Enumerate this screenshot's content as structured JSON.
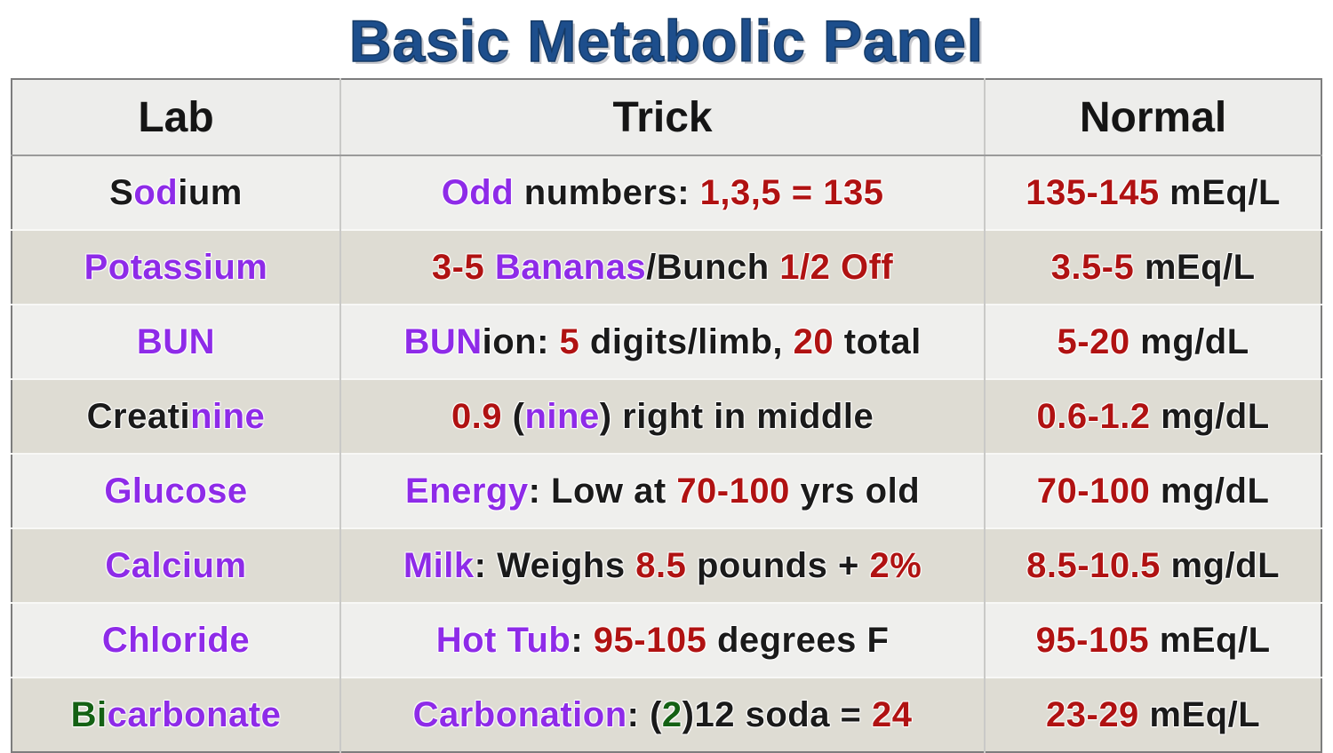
{
  "title": "Basic Metabolic Panel",
  "colors": {
    "black": "#1a1a1a",
    "purple": "#8e2be8",
    "red": "#b01212",
    "green": "#146114",
    "title_blue": "#1d4e8c"
  },
  "table": {
    "headers": [
      "Lab",
      "Trick",
      "Normal"
    ],
    "rows": [
      {
        "lab": [
          {
            "t": "S",
            "c": "black"
          },
          {
            "t": "od",
            "c": "purple"
          },
          {
            "t": "ium",
            "c": "black"
          }
        ],
        "trick": [
          {
            "t": "Odd",
            "c": "purple"
          },
          {
            "t": " numbers: ",
            "c": "black"
          },
          {
            "t": "1,3,5 = 135",
            "c": "red"
          }
        ],
        "normal": [
          {
            "t": "135-145",
            "c": "red"
          },
          {
            "t": " mEq/L",
            "c": "black"
          }
        ]
      },
      {
        "lab": [
          {
            "t": "Potassium",
            "c": "purple"
          }
        ],
        "trick": [
          {
            "t": "3-5 ",
            "c": "red"
          },
          {
            "t": "Bananas",
            "c": "purple"
          },
          {
            "t": "/Bunch ",
            "c": "black"
          },
          {
            "t": "1/2 Off",
            "c": "red"
          }
        ],
        "normal": [
          {
            "t": "3.5-5",
            "c": "red"
          },
          {
            "t": " mEq/L",
            "c": "black"
          }
        ]
      },
      {
        "lab": [
          {
            "t": "BUN",
            "c": "purple"
          }
        ],
        "trick": [
          {
            "t": "BUN",
            "c": "purple"
          },
          {
            "t": "ion: ",
            "c": "black"
          },
          {
            "t": "5",
            "c": "red"
          },
          {
            "t": " digits/limb, ",
            "c": "black"
          },
          {
            "t": "20",
            "c": "red"
          },
          {
            "t": " total",
            "c": "black"
          }
        ],
        "normal": [
          {
            "t": "5-20",
            "c": "red"
          },
          {
            "t": " mg/dL",
            "c": "black"
          }
        ]
      },
      {
        "lab": [
          {
            "t": "Creati",
            "c": "black"
          },
          {
            "t": "nine",
            "c": "purple"
          }
        ],
        "trick": [
          {
            "t": "0.9",
            "c": "red"
          },
          {
            "t": " (",
            "c": "black"
          },
          {
            "t": "nine",
            "c": "purple"
          },
          {
            "t": ") right in middle",
            "c": "black"
          }
        ],
        "normal": [
          {
            "t": "0.6-1.2",
            "c": "red"
          },
          {
            "t": " mg/dL",
            "c": "black"
          }
        ]
      },
      {
        "lab": [
          {
            "t": "Glucose",
            "c": "purple"
          }
        ],
        "trick": [
          {
            "t": "Energy",
            "c": "purple"
          },
          {
            "t": ": Low at ",
            "c": "black"
          },
          {
            "t": "70-100",
            "c": "red"
          },
          {
            "t": " yrs old",
            "c": "black"
          }
        ],
        "normal": [
          {
            "t": "70-100",
            "c": "red"
          },
          {
            "t": " mg/dL",
            "c": "black"
          }
        ]
      },
      {
        "lab": [
          {
            "t": "Calcium",
            "c": "purple"
          }
        ],
        "trick": [
          {
            "t": "Milk",
            "c": "purple"
          },
          {
            "t": ": Weighs ",
            "c": "black"
          },
          {
            "t": "8.5",
            "c": "red"
          },
          {
            "t": " pounds + ",
            "c": "black"
          },
          {
            "t": "2%",
            "c": "red"
          }
        ],
        "normal": [
          {
            "t": "8.5-10.5",
            "c": "red"
          },
          {
            "t": " mg/dL",
            "c": "black"
          }
        ]
      },
      {
        "lab": [
          {
            "t": "Chloride",
            "c": "purple"
          }
        ],
        "trick": [
          {
            "t": "Hot Tub",
            "c": "purple"
          },
          {
            "t": ": ",
            "c": "black"
          },
          {
            "t": "95-105",
            "c": "red"
          },
          {
            "t": " degrees F",
            "c": "black"
          }
        ],
        "normal": [
          {
            "t": "95-105",
            "c": "red"
          },
          {
            "t": " mEq/L",
            "c": "black"
          }
        ]
      },
      {
        "lab": [
          {
            "t": "Bi",
            "c": "green"
          },
          {
            "t": "carbonate",
            "c": "purple"
          }
        ],
        "trick": [
          {
            "t": "Carbonation",
            "c": "purple"
          },
          {
            "t": ": (",
            "c": "black"
          },
          {
            "t": "2",
            "c": "green"
          },
          {
            "t": ")12 soda = ",
            "c": "black"
          },
          {
            "t": "24",
            "c": "red"
          }
        ],
        "normal": [
          {
            "t": "23-29",
            "c": "red"
          },
          {
            "t": " mEq/L",
            "c": "black"
          }
        ]
      }
    ]
  }
}
